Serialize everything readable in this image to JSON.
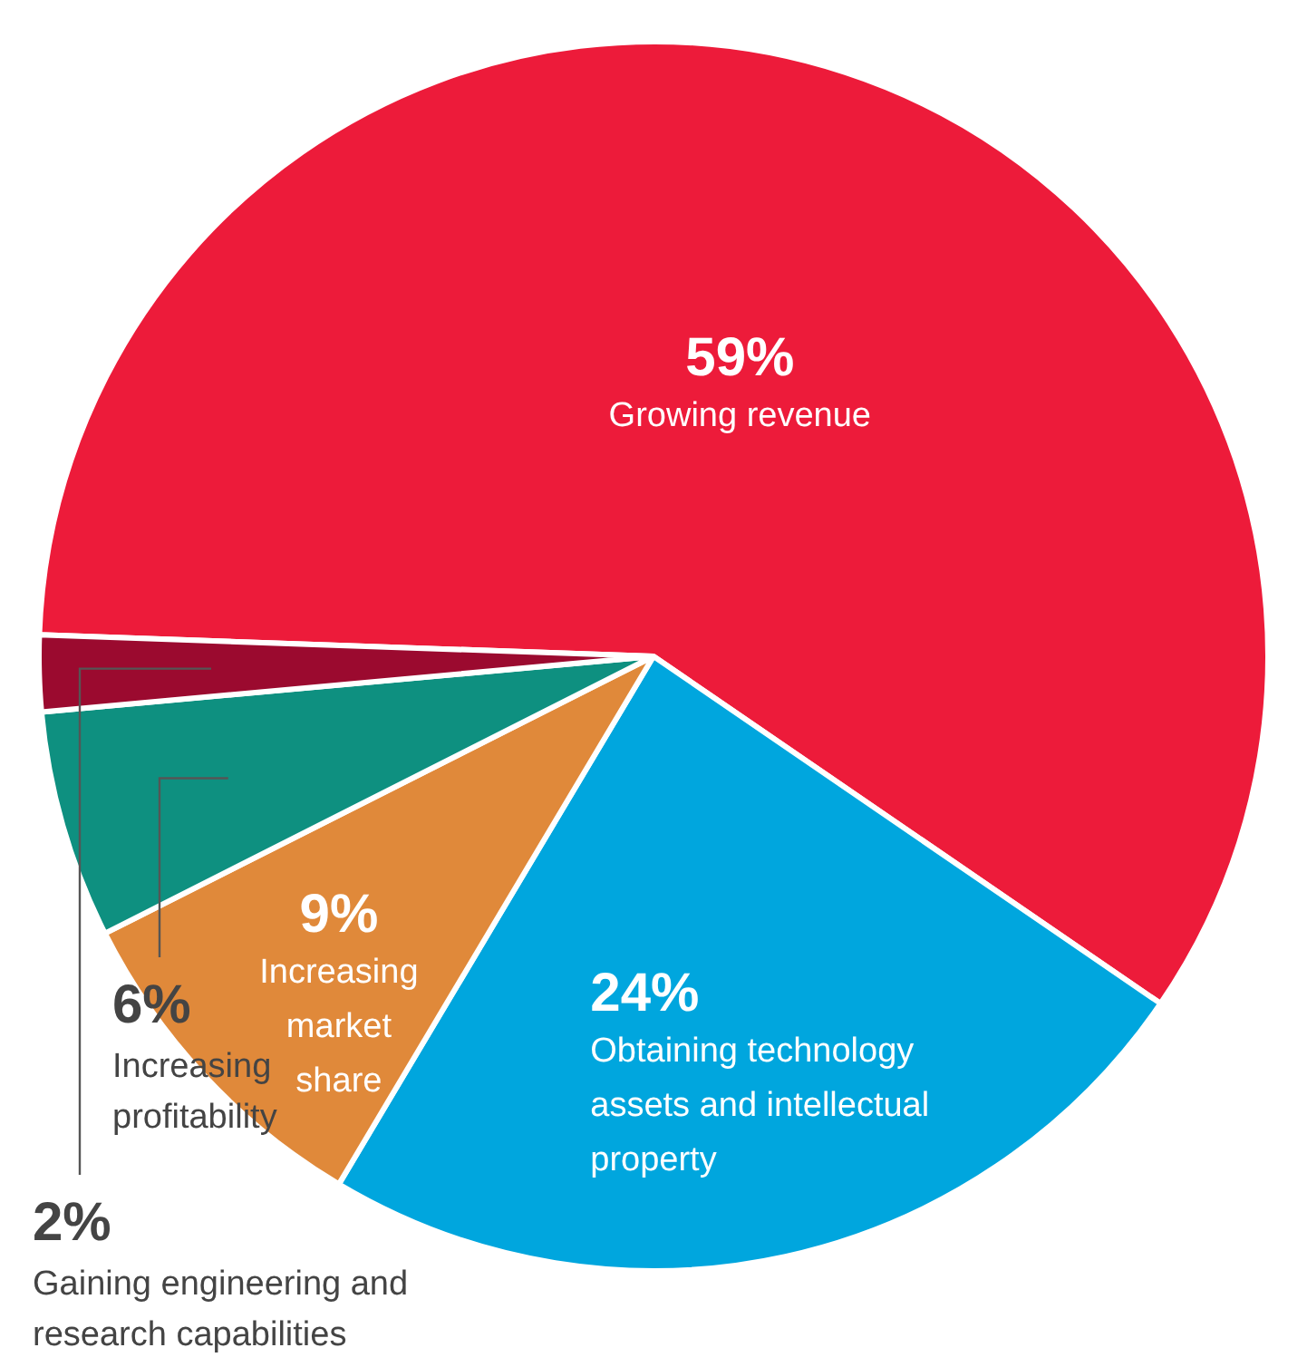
{
  "chart_data": {
    "type": "pie",
    "categories": [
      "Growing revenue",
      "Obtaining technology assets and intellectual property",
      "Increasing market share",
      "Increasing profitability",
      "Gaining engineering and research capabilities"
    ],
    "values": [
      59,
      24,
      9,
      6,
      2
    ],
    "colors": [
      "#ed1b3a",
      "#00a6de",
      "#e0893a",
      "#0e9080",
      "#9b0a2f"
    ],
    "value_labels": [
      "59%",
      "24%",
      "9%",
      "6%",
      "2%"
    ],
    "legend": false
  }
}
